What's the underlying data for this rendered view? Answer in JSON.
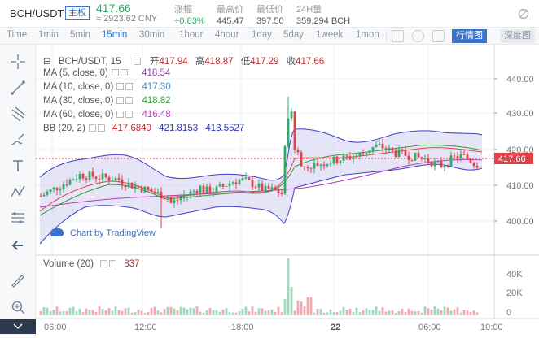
{
  "header": {
    "symbol": "BCH/USDT",
    "badge": "主板",
    "price": "417.66",
    "cny": "≈ 2923.62 CNY",
    "stats": [
      {
        "label": "涨幅",
        "value": "+0.83%",
        "up": true
      },
      {
        "label": "最高价",
        "value": "445.47",
        "up": false
      },
      {
        "label": "最低价",
        "value": "397.50",
        "up": false
      },
      {
        "label": "24H量",
        "value": "359,294 BCH",
        "up": false
      }
    ]
  },
  "toolbar": {
    "timeframes": [
      "Time",
      "1min",
      "5min",
      "15min",
      "30min",
      "1hour",
      "4hour",
      "1day",
      "5day",
      "1week",
      "1mon"
    ],
    "active": "15min",
    "chart_types": [
      "行情图",
      "深度图"
    ]
  },
  "legend": {
    "main": {
      "symbol": "BCH/USDT, 15",
      "open_label": "开",
      "open": "417.94",
      "high_label": "高",
      "high": "418.87",
      "low_label": "低",
      "low": "417.29",
      "close_label": "收",
      "close": "417.66"
    },
    "ma": [
      {
        "label": "MA (5, close, 0)",
        "value": "418.54",
        "color": "#8b4a9e"
      },
      {
        "label": "MA (10, close, 0)",
        "value": "417.30",
        "color": "#4a88c9"
      },
      {
        "label": "MA (30, close, 0)",
        "value": "418.82",
        "color": "#3a9a3a"
      },
      {
        "label": "MA (60, close, 0)",
        "value": "416.48",
        "color": "#b03fb0"
      }
    ],
    "bb": {
      "label": "BB (20, 2)",
      "values": [
        "417.6840",
        "421.8153",
        "413.5527"
      ],
      "colors": [
        "#c02a2a",
        "#2a36b0",
        "#2a36b0"
      ]
    },
    "volume": {
      "label": "Volume (20)",
      "value": "837"
    }
  },
  "brand": "Chart by TradingView",
  "axis": {
    "price_ticks": [
      "440.00",
      "430.00",
      "420.00",
      "410.00",
      "400.00"
    ],
    "current_price": "417.66",
    "vol_ticks": [
      "40K",
      "20K",
      "0"
    ],
    "time_ticks": [
      "06:00",
      "12:00",
      "18:00",
      "22",
      "06:00",
      "10:00"
    ]
  },
  "colors": {
    "up": "#2eaa6c",
    "down": "#e0424a",
    "accent": "#3a73c9"
  }
}
